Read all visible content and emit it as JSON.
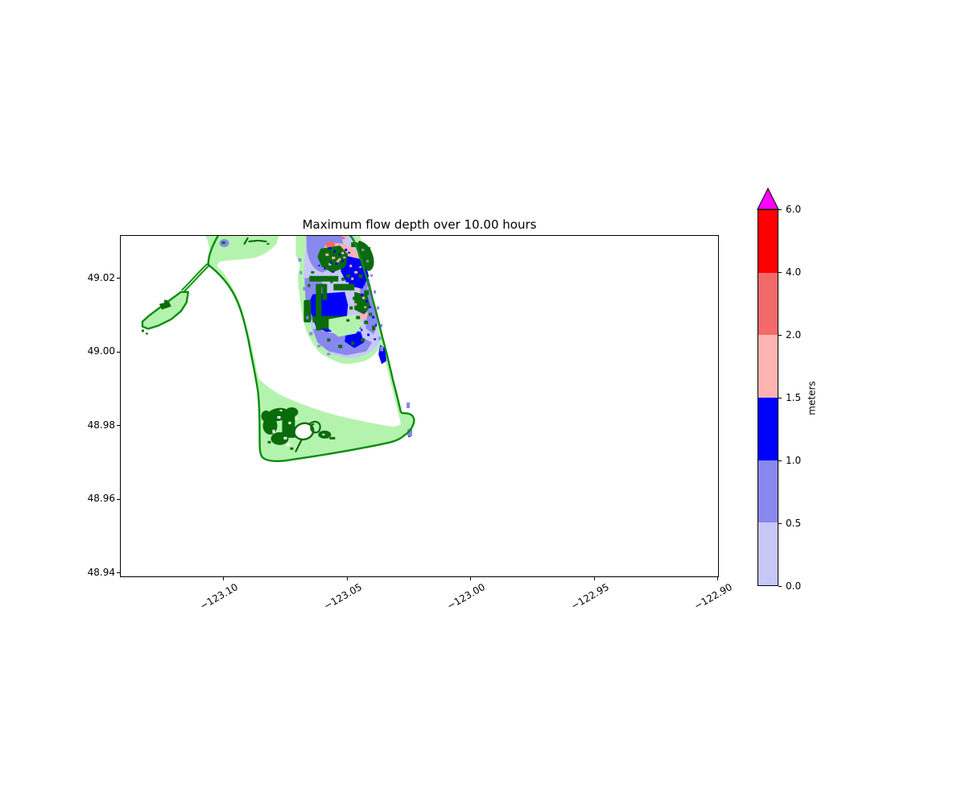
{
  "figure": {
    "title": "Maximum flow depth over 10.00 hours"
  },
  "axes": {
    "x_ticks": [
      {
        "label": "−123.10"
      },
      {
        "label": "−123.05"
      },
      {
        "label": "−123.00"
      },
      {
        "label": "−122.95"
      },
      {
        "label": "−122.90"
      }
    ],
    "y_ticks": [
      {
        "label": "49.02"
      },
      {
        "label": "49.00"
      },
      {
        "label": "48.98"
      },
      {
        "label": "48.96"
      },
      {
        "label": "48.94"
      }
    ]
  },
  "colorbar": {
    "label": "meters",
    "tick_labels": [
      "6.0",
      "4.0",
      "2.0",
      "1.5",
      "1.0",
      "0.5",
      "0.0"
    ]
  },
  "palette": {
    "background": "#ffffff",
    "depth_0_0_5": "#c8c8f8",
    "depth_0_5_1": "#8888ee",
    "depth_1_1_5": "#0000ff",
    "depth_1_5_2": "#ffb3b3",
    "depth_2_4": "#f46a6a",
    "depth_4_6": "#ff0000",
    "depth_over": "#ff00ff",
    "land_fill": "#b4f3ae",
    "coast_stroke": "#0b8c0b",
    "patch_green": "#0a6b0a"
  },
  "chart_data": {
    "type": "heatmap",
    "title": "Maximum flow depth over 10.00 hours",
    "xlabel": "",
    "ylabel": "",
    "x_tick_values": [
      -123.1,
      -123.05,
      -123.0,
      -122.95,
      -122.9
    ],
    "y_tick_values": [
      49.02,
      49.0,
      48.98,
      48.96,
      48.94
    ],
    "xlim": [
      -123.142,
      -122.899
    ],
    "ylim": [
      48.938,
      49.032
    ],
    "grid": false,
    "colorbar": {
      "label": "meters",
      "levels": [
        0.0,
        0.5,
        1.0,
        1.5,
        2.0,
        4.0,
        6.0
      ],
      "colors": [
        "#c8c8f8",
        "#8888ee",
        "#0000ff",
        "#ffb3b3",
        "#f46a6a",
        "#ff0000"
      ],
      "over_color": "#ff00ff",
      "extend": "max",
      "spacing": "uniform"
    },
    "description": "Coastal peninsula with ferry jetty outlined in green; flood depths up to 2–4 m concentrated in the northeast lowland, shallow 0–1.5 m flooding (blues) across it, light green coastal fringe, dark green vegetated patches in the south."
  }
}
